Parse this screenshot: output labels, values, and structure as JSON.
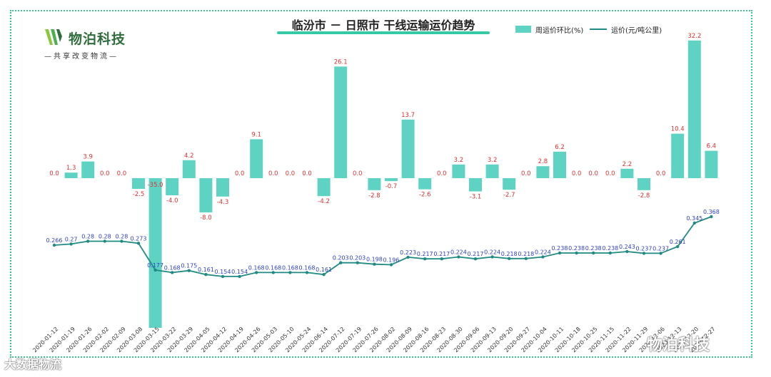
{
  "logo": {
    "name": "物泊科技",
    "slogan": "—共享改变物流—"
  },
  "watermarks": {
    "left": "大数据物流",
    "right": "物泊科技"
  },
  "colors": {
    "bar": "#5fd3c3",
    "line": "#1f8b82",
    "bar_label": "#e03030",
    "line_label": "#2a3fc8",
    "border": "#3cc58a"
  },
  "chart_data": {
    "type": "bar+line",
    "title": "临汾市 － 日照市 干线运输运价趋势",
    "legend": {
      "placement": "top-right"
    },
    "categories": [
      "2020-01-12",
      "2020-01-19",
      "2020-01-26",
      "2020-02-02",
      "2020-02-09",
      "2020-03-08",
      "2020-03-15",
      "2020-03-22",
      "2020-03-29",
      "2020-04-05",
      "2020-04-12",
      "2020-04-19",
      "2020-04-26",
      "2020-05-03",
      "2020-05-10",
      "2020-05-24",
      "2020-06-14",
      "2020-07-12",
      "2020-07-19",
      "2020-07-26",
      "2020-08-02",
      "2020-08-09",
      "2020-08-16",
      "2020-08-23",
      "2020-08-30",
      "2020-09-06",
      "2020-09-13",
      "2020-09-20",
      "2020-09-27",
      "2020-10-04",
      "2020-10-11",
      "2020-10-18",
      "2020-10-25",
      "2020-11-15",
      "2020-11-22",
      "2020-11-29",
      "2020-12-06",
      "2020-12-13",
      "2020-12-20",
      "2020-12-27"
    ],
    "series": [
      {
        "name": "周运价环比(%)",
        "type": "bar",
        "values": [
          0.0,
          1.3,
          3.9,
          0.0,
          0.0,
          -2.5,
          -35.0,
          -4.0,
          4.2,
          -8.0,
          -4.3,
          0.0,
          9.1,
          0.0,
          0.0,
          0.0,
          -4.2,
          26.1,
          0.0,
          -2.8,
          -0.7,
          13.7,
          -2.6,
          0.0,
          3.2,
          -3.1,
          3.2,
          -2.7,
          0.0,
          2.8,
          6.2,
          0.0,
          0.0,
          0.0,
          2.2,
          -2.8,
          0.0,
          10.4,
          32.2,
          6.4
        ],
        "labels": [
          "0.0",
          "1.3",
          "3.9",
          "0.0",
          "0.0",
          "-2.5",
          "-35.0",
          "-4.0",
          "4.2",
          "-8.0",
          "-4.3",
          "0.0",
          "9.1",
          "0.0",
          "0.0",
          "0.0",
          "-4.2",
          "26.1",
          "0.0",
          "-2.8",
          "-0.7",
          "13.7",
          "-2.6",
          "0.0",
          "3.2",
          "-3.1",
          "3.2",
          "-2.7",
          "0.0",
          "2.8",
          "6.2",
          "0.0",
          "0.0",
          "0.0",
          "2.2",
          "-2.8",
          "0.0",
          "10.4",
          "32.2",
          "6.4"
        ]
      },
      {
        "name": "运价(元/吨公里)",
        "type": "line",
        "values": [
          0.266,
          0.27,
          0.28,
          0.28,
          0.28,
          0.273,
          0.177,
          0.168,
          0.175,
          0.161,
          0.154,
          0.154,
          0.168,
          0.168,
          0.168,
          0.168,
          0.161,
          0.203,
          0.203,
          0.198,
          0.196,
          0.223,
          0.217,
          0.217,
          0.224,
          0.217,
          0.224,
          0.218,
          0.218,
          0.224,
          0.238,
          0.238,
          0.238,
          0.238,
          0.243,
          0.237,
          0.237,
          0.261,
          0.345,
          0.368
        ],
        "labels": [
          "0.266",
          "0.27",
          "0.28",
          "0.28",
          "0.28",
          "0.273",
          "0.177",
          "0.168",
          "0.175",
          "0.161",
          "0.154",
          "0.154",
          "0.168",
          "0.168",
          "0.168",
          "0.168",
          "0.161",
          "0.203",
          "0.203",
          "0.198",
          "0.196",
          "0.223",
          "0.217",
          "0.217",
          "0.224",
          "0.217",
          "0.224",
          "0.218",
          "0.218",
          "0.224",
          "0.238",
          "0.238",
          "0.238",
          "0.238",
          "0.243",
          "0.237",
          "0.237",
          "0.261",
          "0.345",
          "0.368"
        ]
      }
    ],
    "y_bar_range": [
      -35.0,
      32.2
    ],
    "y_line_range": [
      0.154,
      0.368
    ],
    "grid": false
  }
}
